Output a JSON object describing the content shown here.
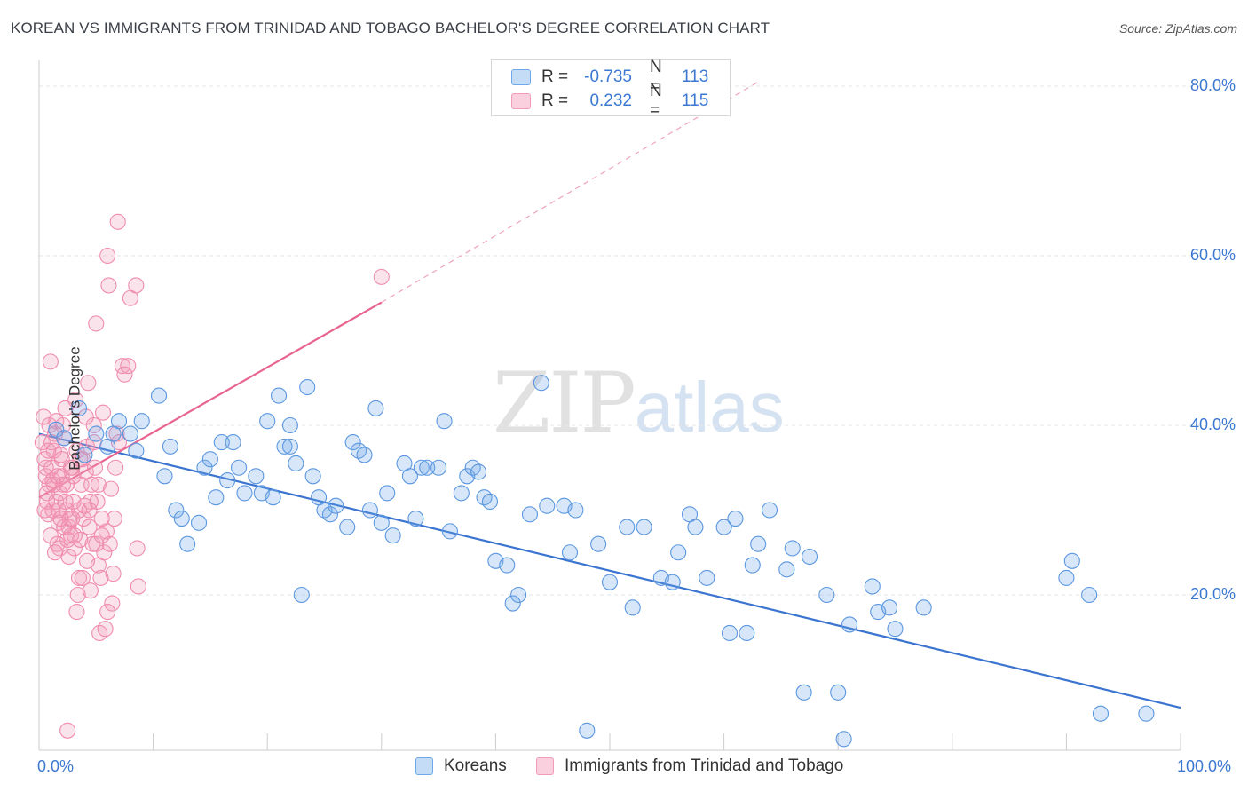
{
  "title": "KOREAN VS IMMIGRANTS FROM TRINIDAD AND TOBAGO BACHELOR'S DEGREE CORRELATION CHART",
  "source": "Source: ZipAtlas.com",
  "watermark": {
    "zip": "ZIP",
    "atlas": "atlas"
  },
  "legend": {
    "rows": [
      {
        "r_label": "R =",
        "r_value": "-0.735",
        "n_label": "N =",
        "n_value": "113",
        "color": "#6fa8ea"
      },
      {
        "r_label": "R =",
        "r_value": "0.232",
        "n_label": "N =",
        "n_value": "115",
        "color": "#f29bb8"
      }
    ]
  },
  "bottom_legend": {
    "series1": "Koreans",
    "series2": "Immigrants from Trinidad and Tobago"
  },
  "axes": {
    "ylabel": "Bachelor's Degree",
    "y_ticks": [
      "80.0%",
      "60.0%",
      "40.0%",
      "20.0%"
    ],
    "x_start": "0.0%",
    "x_end": "100.0%"
  },
  "chart_data": {
    "type": "scatter",
    "title": "KOREAN VS IMMIGRANTS FROM TRINIDAD AND TOBAGO BACHELOR'S DEGREE CORRELATION CHART",
    "xlabel": "",
    "ylabel": "Bachelor's Degree",
    "xlim": [
      0,
      100
    ],
    "ylim": [
      0,
      82
    ],
    "grid": true,
    "legend_position": "bottom-center",
    "series": [
      {
        "name": "Koreans",
        "color": "#6fa8ea",
        "trend": {
          "x0": 0,
          "y0": 39.0,
          "x1": 100,
          "y1": 6.7
        },
        "points": [
          [
            1.5,
            39.5
          ],
          [
            2.2,
            38.5
          ],
          [
            3.5,
            42
          ],
          [
            4,
            36.5
          ],
          [
            5,
            39
          ],
          [
            6,
            37.5
          ],
          [
            6.5,
            39
          ],
          [
            7,
            40.5
          ],
          [
            8,
            39
          ],
          [
            8.5,
            37
          ],
          [
            9,
            40.5
          ],
          [
            10.5,
            43.5
          ],
          [
            11,
            34
          ],
          [
            11.5,
            37.5
          ],
          [
            12,
            30
          ],
          [
            12.5,
            29
          ],
          [
            13,
            26
          ],
          [
            14,
            28.5
          ],
          [
            14.5,
            35
          ],
          [
            15,
            36
          ],
          [
            15.5,
            31.5
          ],
          [
            16,
            38
          ],
          [
            16.5,
            33.5
          ],
          [
            17,
            38
          ],
          [
            17.5,
            35
          ],
          [
            18,
            32
          ],
          [
            19,
            34
          ],
          [
            19.5,
            32
          ],
          [
            20,
            40.5
          ],
          [
            20.5,
            31.5
          ],
          [
            21,
            43.5
          ],
          [
            21.5,
            37.5
          ],
          [
            22,
            37.5
          ],
          [
            22,
            40
          ],
          [
            22.5,
            35.5
          ],
          [
            23,
            20
          ],
          [
            23.5,
            44.5
          ],
          [
            24,
            34
          ],
          [
            24.5,
            31.5
          ],
          [
            25,
            30
          ],
          [
            25.5,
            29.5
          ],
          [
            26,
            30.5
          ],
          [
            27,
            28
          ],
          [
            27.5,
            38
          ],
          [
            28,
            37
          ],
          [
            28.5,
            36.5
          ],
          [
            29,
            30
          ],
          [
            29.5,
            42
          ],
          [
            30,
            28.5
          ],
          [
            30.5,
            32
          ],
          [
            31,
            27
          ],
          [
            32,
            35.5
          ],
          [
            32.5,
            34
          ],
          [
            33,
            29
          ],
          [
            33.5,
            35
          ],
          [
            34,
            35
          ],
          [
            35,
            35
          ],
          [
            35.5,
            40.5
          ],
          [
            36,
            27.5
          ],
          [
            37,
            32
          ],
          [
            37.5,
            34
          ],
          [
            38,
            35
          ],
          [
            38.5,
            34.5
          ],
          [
            39,
            31.5
          ],
          [
            39.5,
            31
          ],
          [
            40,
            24
          ],
          [
            41,
            23.5
          ],
          [
            41.5,
            19
          ],
          [
            42,
            20
          ],
          [
            43,
            29.5
          ],
          [
            44,
            45
          ],
          [
            44.5,
            30.5
          ],
          [
            46,
            30.5
          ],
          [
            46.5,
            25
          ],
          [
            47,
            30
          ],
          [
            48,
            4
          ],
          [
            49,
            26
          ],
          [
            50,
            21.5
          ],
          [
            51.5,
            28
          ],
          [
            52,
            18.5
          ],
          [
            53,
            28
          ],
          [
            54.5,
            22
          ],
          [
            55.5,
            21.5
          ],
          [
            56,
            25
          ],
          [
            57,
            29.5
          ],
          [
            57.5,
            28
          ],
          [
            58.5,
            22
          ],
          [
            60,
            28
          ],
          [
            60.5,
            15.5
          ],
          [
            61,
            29
          ],
          [
            62,
            15.5
          ],
          [
            62.5,
            23.5
          ],
          [
            63,
            26
          ],
          [
            64,
            30
          ],
          [
            65.5,
            23
          ],
          [
            66,
            25.5
          ],
          [
            67,
            8.5
          ],
          [
            67.5,
            24.5
          ],
          [
            69,
            20
          ],
          [
            70,
            8.5
          ],
          [
            70.5,
            3
          ],
          [
            71,
            16.5
          ],
          [
            73,
            21
          ],
          [
            73.5,
            18
          ],
          [
            74.5,
            18.5
          ],
          [
            75,
            16
          ],
          [
            77.5,
            18.5
          ],
          [
            90,
            22
          ],
          [
            90.5,
            24
          ],
          [
            92,
            20
          ],
          [
            93,
            6
          ],
          [
            97,
            6
          ]
        ]
      },
      {
        "name": "Immigrants from Trinidad and Tobago",
        "color": "#f29bb8",
        "trend": {
          "x0": 0,
          "y0": 31.5,
          "x1": 30,
          "y1": 54.5
        },
        "trend_extension": {
          "x0": 30,
          "y0": 54.5,
          "x1": 63,
          "y1": 80.5
        },
        "points": [
          [
            0.3,
            38
          ],
          [
            0.5,
            36
          ],
          [
            0.6,
            34
          ],
          [
            0.7,
            31
          ],
          [
            0.8,
            29.5
          ],
          [
            0.9,
            40
          ],
          [
            1,
            47.5
          ],
          [
            1.1,
            35
          ],
          [
            1.2,
            33.5
          ],
          [
            1.3,
            37
          ],
          [
            1.4,
            39
          ],
          [
            1.5,
            31
          ],
          [
            1.6,
            26
          ],
          [
            1.7,
            28.5
          ],
          [
            1.8,
            25.5
          ],
          [
            1.9,
            36.5
          ],
          [
            2,
            34
          ],
          [
            2.1,
            33
          ],
          [
            2.2,
            38.5
          ],
          [
            2.3,
            42
          ],
          [
            2.4,
            30
          ],
          [
            2.5,
            26.5
          ],
          [
            2.6,
            24.5
          ],
          [
            2.7,
            29
          ],
          [
            2.8,
            27
          ],
          [
            2.9,
            35
          ],
          [
            3,
            31
          ],
          [
            3.1,
            25.5
          ],
          [
            3.2,
            43
          ],
          [
            3.3,
            18
          ],
          [
            3.4,
            20
          ],
          [
            3.5,
            22
          ],
          [
            3.6,
            26.5
          ],
          [
            3.7,
            33
          ],
          [
            3.8,
            36
          ],
          [
            3.9,
            29
          ],
          [
            4,
            30.5
          ],
          [
            4.1,
            34.5
          ],
          [
            4.2,
            37.5
          ],
          [
            4.3,
            45
          ],
          [
            4.4,
            28
          ],
          [
            4.5,
            20.5
          ],
          [
            4.6,
            33
          ],
          [
            4.7,
            26
          ],
          [
            4.8,
            40
          ],
          [
            4.9,
            35
          ],
          [
            5,
            52
          ],
          [
            5.1,
            31
          ],
          [
            5.2,
            23.5
          ],
          [
            5.3,
            15.5
          ],
          [
            5.4,
            22
          ],
          [
            5.5,
            29
          ],
          [
            5.6,
            41.5
          ],
          [
            5.7,
            25
          ],
          [
            5.8,
            16
          ],
          [
            5.9,
            27.5
          ],
          [
            6,
            60
          ],
          [
            6.1,
            56.5
          ],
          [
            6.2,
            26
          ],
          [
            6.3,
            32.5
          ],
          [
            6.4,
            19
          ],
          [
            6.5,
            22.5
          ],
          [
            6.6,
            29
          ],
          [
            6.7,
            35
          ],
          [
            6.8,
            39
          ],
          [
            6.9,
            64
          ],
          [
            7,
            38
          ],
          [
            7.3,
            47
          ],
          [
            7.5,
            46
          ],
          [
            7.8,
            47
          ],
          [
            8,
            55
          ],
          [
            8.5,
            56.5
          ],
          [
            8.6,
            25.5
          ],
          [
            8.7,
            21
          ],
          [
            30,
            57.5
          ],
          [
            2.5,
            4
          ],
          [
            1.2,
            30
          ],
          [
            1.8,
            32
          ],
          [
            2.2,
            28
          ],
          [
            0.8,
            37
          ],
          [
            1.5,
            40.5
          ],
          [
            0.4,
            41
          ],
          [
            3.5,
            30
          ],
          [
            2.8,
            35
          ],
          [
            4.2,
            24
          ],
          [
            1,
            27
          ],
          [
            1.3,
            33
          ],
          [
            2,
            36
          ],
          [
            0.6,
            35
          ],
          [
            3,
            34
          ],
          [
            2.4,
            33
          ],
          [
            1.7,
            30
          ],
          [
            4.5,
            31
          ],
          [
            5,
            26
          ],
          [
            3.8,
            22
          ],
          [
            2.6,
            28
          ],
          [
            1.1,
            38
          ],
          [
            0.9,
            33
          ],
          [
            3.3,
            37
          ],
          [
            2.1,
            40
          ],
          [
            4.8,
            38
          ],
          [
            5.5,
            27
          ],
          [
            6,
            18
          ],
          [
            1.4,
            25
          ],
          [
            2.9,
            29
          ],
          [
            3.6,
            36
          ],
          [
            4.1,
            41
          ],
          [
            0.7,
            32
          ],
          [
            1.6,
            34
          ],
          [
            2.3,
            31
          ],
          [
            3.1,
            27
          ],
          [
            4.4,
            30
          ],
          [
            5.2,
            33
          ],
          [
            1.9,
            29
          ],
          [
            0.5,
            30
          ]
        ]
      }
    ]
  }
}
